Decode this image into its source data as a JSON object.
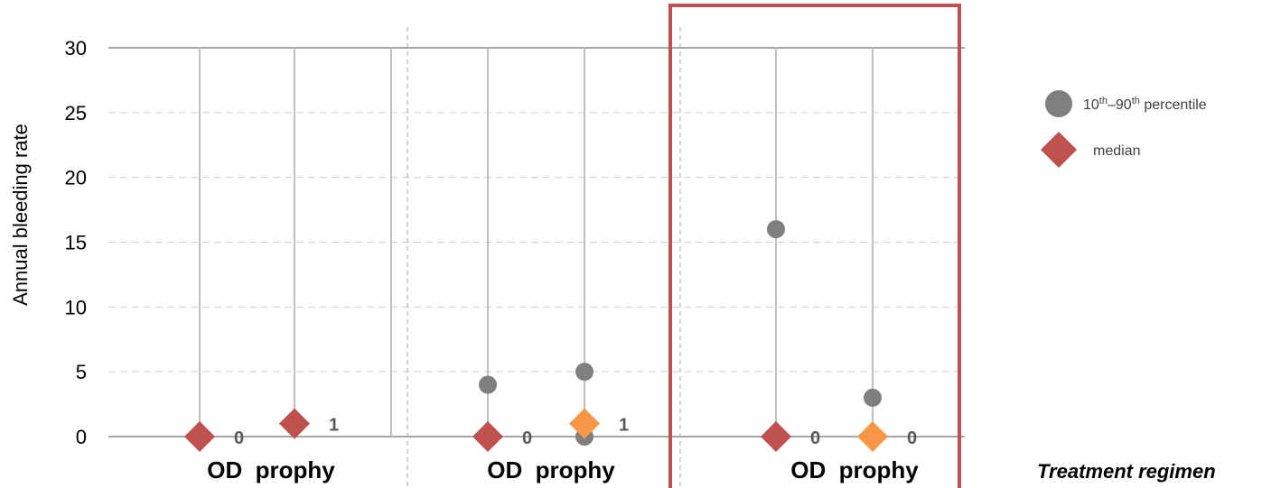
{
  "chart_data": {
    "type": "scatter",
    "ylabel": "Annual bleeding rate",
    "xlabel": "Treatment regimen",
    "ylim": [
      0,
      30
    ],
    "yticks": [
      0,
      5,
      10,
      15,
      20,
      25,
      30
    ],
    "grid": "horizontal dashed",
    "legend": {
      "placement": "right",
      "entries": [
        {
          "marker": "circle",
          "color": "#7f7f7f",
          "label": "10th–90th percentile",
          "label_parts": [
            "10",
            "th",
            "–90",
            "th",
            " percentile"
          ]
        },
        {
          "marker": "diamond",
          "color": "#c0504d",
          "label": "median"
        }
      ]
    },
    "groups": [
      {
        "label": "OD  prophy",
        "highlighted": false,
        "columns": [
          {
            "p10": null,
            "p90": null,
            "median": 0,
            "median_label": "0",
            "median_color": "#c0504d"
          },
          {
            "p10": null,
            "p90": null,
            "median": 1,
            "median_label": "1",
            "median_color": "#c0504d"
          }
        ]
      },
      {
        "label": "OD  prophy",
        "highlighted": false,
        "columns": [
          {
            "p10": null,
            "p90": 4,
            "median": 0,
            "median_label": "0",
            "median_color": "#c0504d"
          },
          {
            "p10": 0,
            "p90": 5,
            "median": 1,
            "median_label": "1",
            "median_color": "#f79646"
          }
        ]
      },
      {
        "label": "OD  prophy",
        "highlighted": true,
        "columns": [
          {
            "p10": null,
            "p90": 16,
            "median": 0,
            "median_label": "0",
            "median_color": "#c0504d"
          },
          {
            "p10": null,
            "p90": 3,
            "median": 0,
            "median_label": "0",
            "median_color": "#f79646"
          }
        ]
      }
    ]
  }
}
